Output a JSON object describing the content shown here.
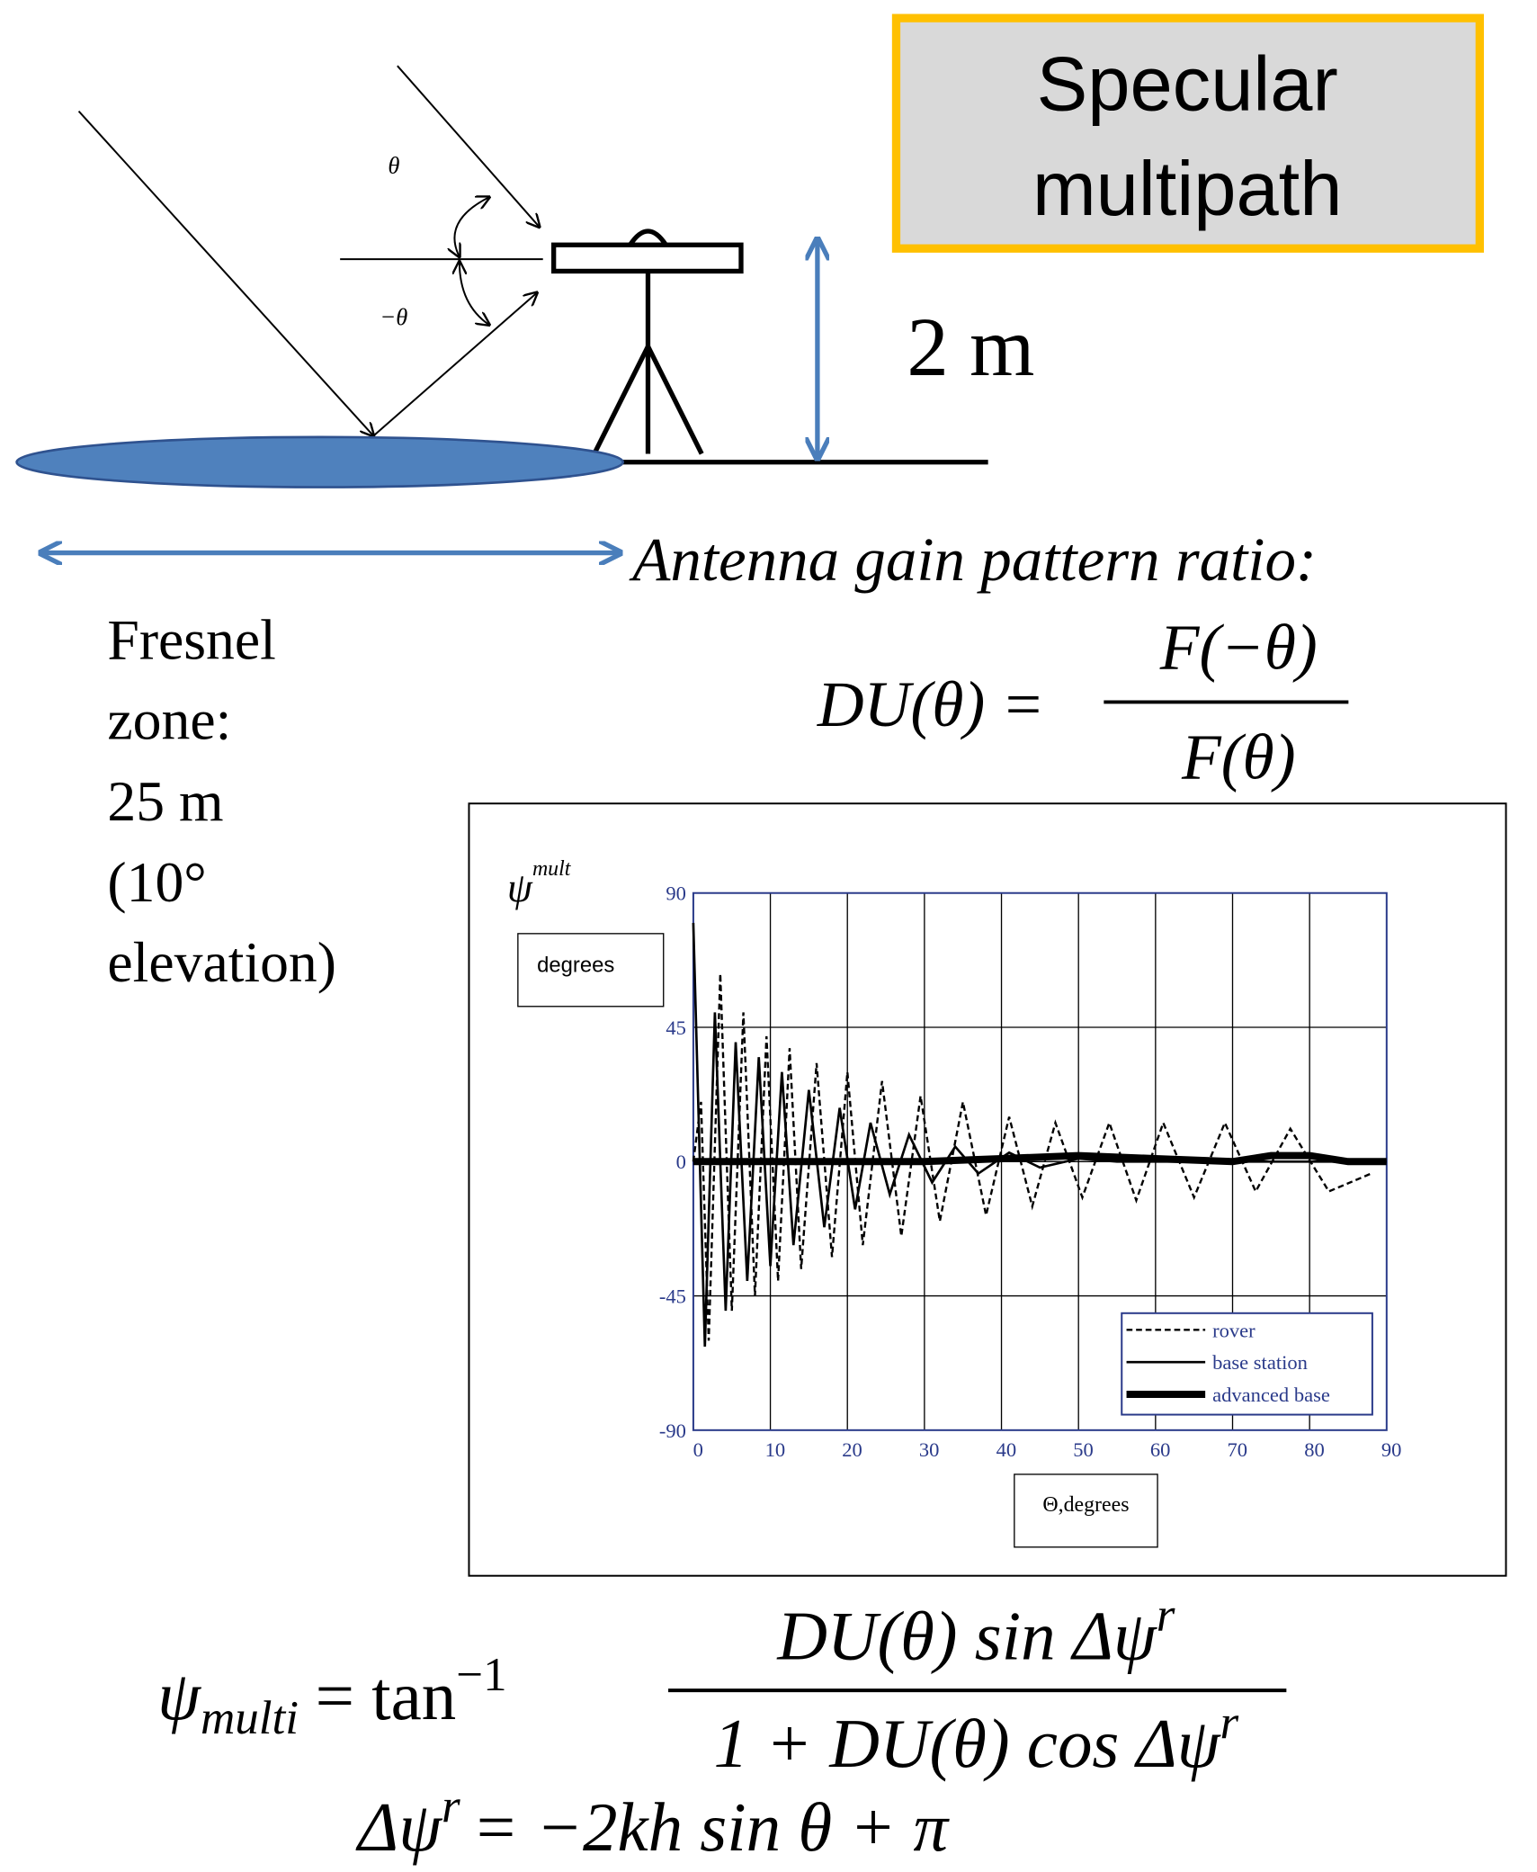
{
  "box_title": {
    "line1": "Specular",
    "line2": "multipath"
  },
  "diagram": {
    "theta": "θ",
    "minus_theta": "−θ",
    "height": "2 m"
  },
  "gain_label": "Antenna gain  pattern ratio:",
  "fresnel": [
    "Fresnel",
    "zone:",
    "25 m",
    "(10°",
    "elevation)"
  ],
  "du_formula": {
    "lhs": "DU(θ) =",
    "num": "F(−θ)",
    "den": "F(θ)"
  },
  "psi_formula": {
    "lhs": "ψ",
    "lhs_sub": "multi",
    "eq": "= tan",
    "sup": "−1",
    "num": "DU(θ) sin Δψ",
    "num_sup": "r",
    "den": "1 + DU(θ) cos Δψ",
    "den_sup": "r"
  },
  "delta_formula": {
    "lhs": "Δψ",
    "lhs_sup": "r",
    "rhs": "= −2kh sin θ + π"
  },
  "chart_data": {
    "type": "line",
    "ylabel": "ψ",
    "ylabel_sup": "mult",
    "y_unit": "degrees",
    "xlabel": "Θ,degrees",
    "xlim": [
      0,
      90
    ],
    "xticks": [
      0,
      10,
      20,
      30,
      40,
      50,
      60,
      70,
      80,
      90
    ],
    "ylim": [
      -90,
      90
    ],
    "yticks": [
      -90,
      -45,
      0,
      45,
      90
    ],
    "grid": true,
    "legend": "lower right",
    "series": [
      {
        "name": "rover",
        "color": "#000000",
        "dash": "dotted",
        "width": 1.8,
        "x": [
          0,
          1,
          2,
          3.5,
          5,
          6.5,
          8,
          9.5,
          11,
          12.5,
          14,
          16,
          18,
          20,
          22,
          24.5,
          27,
          29.5,
          32,
          35,
          38,
          41,
          44,
          47,
          50.5,
          54,
          57.5,
          61,
          65,
          69,
          73,
          77.5,
          82.5,
          88
        ],
        "values": [
          0,
          20,
          -60,
          63,
          -50,
          50,
          -45,
          42,
          -40,
          38,
          -36,
          33,
          -32,
          30,
          -28,
          27,
          -25,
          22,
          -20,
          20,
          -18,
          15,
          -15,
          13,
          -12,
          13,
          -13,
          13,
          -12,
          13,
          -10,
          11,
          -10,
          -4
        ]
      },
      {
        "name": "base station",
        "color": "#000000",
        "dash": "solid",
        "width": 2,
        "x": [
          0,
          1.5,
          2.8,
          4.2,
          5.5,
          7,
          8.5,
          10,
          11.5,
          13,
          15,
          17,
          19,
          21,
          23,
          25.5,
          28,
          31,
          34,
          37,
          41,
          45,
          50,
          55,
          90
        ],
        "values": [
          80,
          -62,
          50,
          -50,
          40,
          -40,
          35,
          -35,
          30,
          -28,
          24,
          -22,
          18,
          -16,
          13,
          -11,
          9,
          -7,
          5,
          -4,
          3,
          -2,
          1,
          0,
          0
        ]
      },
      {
        "name": "advanced base",
        "color": "#000000",
        "dash": "solid",
        "width": 6,
        "x": [
          0,
          30,
          40,
          50,
          60,
          70,
          75,
          80,
          85,
          90
        ],
        "values": [
          0,
          0,
          1,
          2,
          1,
          0,
          2,
          2,
          0,
          0
        ]
      }
    ]
  }
}
